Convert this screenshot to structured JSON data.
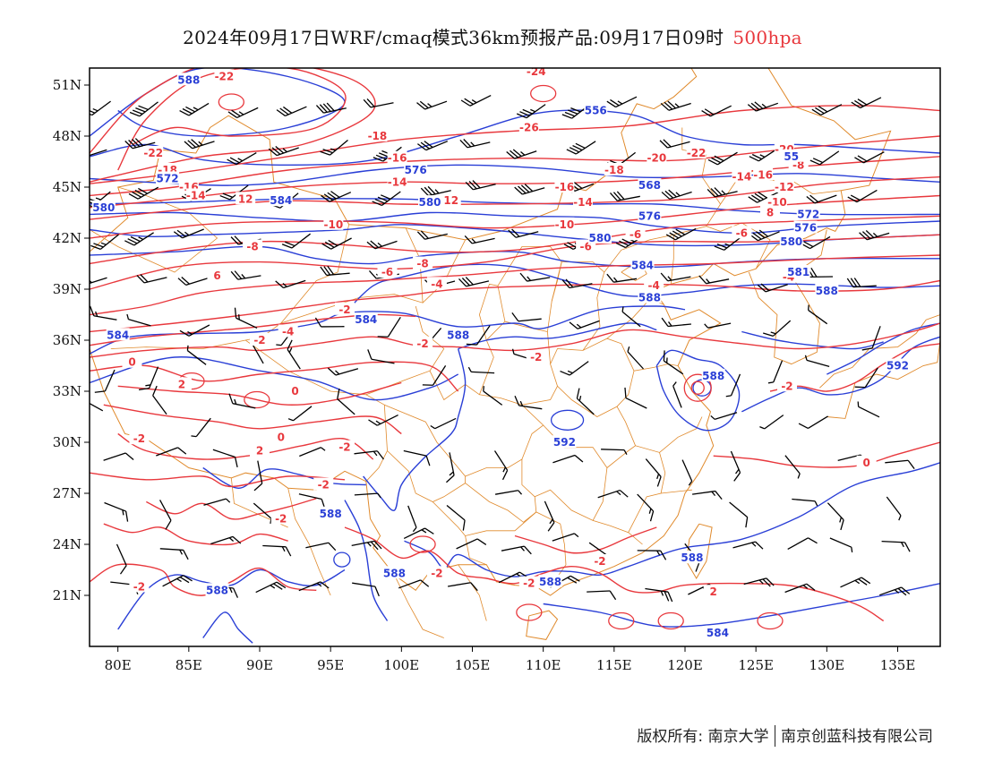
{
  "title": {
    "main": "2024年09月17日WRF/cmaq模式36km预报产品:09月17日09时",
    "level": "500hpa"
  },
  "axes": {
    "x_ticks": [
      "80E",
      "85E",
      "90E",
      "95E",
      "100E",
      "105E",
      "110E",
      "115E",
      "120E",
      "125E",
      "130E",
      "135E"
    ],
    "y_ticks": [
      "51N",
      "48N",
      "45N",
      "42N",
      "39N",
      "36N",
      "33N",
      "30N",
      "27N",
      "24N",
      "21N"
    ]
  },
  "colors": {
    "temperature": "#e8383d",
    "geopotential": "#2a3fd6",
    "border": "#e08a2c",
    "wind": "#000000",
    "frame": "#000000"
  },
  "legend_notes": {
    "red_contours": "temperature (℃)",
    "blue_contours": "geopotential height (dagpm)",
    "barbs": "wind"
  },
  "chart_data": {
    "type": "map",
    "projection": "lat-lon",
    "lon_range": [
      78,
      138
    ],
    "lat_range": [
      18,
      52
    ],
    "temperature_labels": [
      {
        "text": "-22",
        "lon": 87.5,
        "lat": 51.5
      },
      {
        "text": "-22",
        "lon": 82.5,
        "lat": 47.0
      },
      {
        "text": "-18",
        "lon": 83.5,
        "lat": 46.0
      },
      {
        "text": "-16",
        "lon": 85.0,
        "lat": 45.0
      },
      {
        "text": "-14",
        "lon": 85.5,
        "lat": 44.5
      },
      {
        "text": "12",
        "lon": 89.0,
        "lat": 44.3
      },
      {
        "text": "-18",
        "lon": 98.3,
        "lat": 48.0
      },
      {
        "text": "-16",
        "lon": 99.7,
        "lat": 46.7
      },
      {
        "text": "-14",
        "lon": 99.7,
        "lat": 45.3
      },
      {
        "text": "12",
        "lon": 103.5,
        "lat": 44.2
      },
      {
        "text": "-10",
        "lon": 95.2,
        "lat": 42.8
      },
      {
        "text": "-8",
        "lon": 89.5,
        "lat": 41.5
      },
      {
        "text": "6",
        "lon": 87.0,
        "lat": 39.8
      },
      {
        "text": "-8",
        "lon": 101.5,
        "lat": 40.5
      },
      {
        "text": "-6",
        "lon": 99.0,
        "lat": 40.0
      },
      {
        "text": "-4",
        "lon": 102.5,
        "lat": 39.3
      },
      {
        "text": "-24",
        "lon": 109.5,
        "lat": 51.8
      },
      {
        "text": "-26",
        "lon": 109.0,
        "lat": 48.5
      },
      {
        "text": "-18",
        "lon": 115.0,
        "lat": 46.0
      },
      {
        "text": "-16",
        "lon": 111.5,
        "lat": 45.0
      },
      {
        "text": "-14",
        "lon": 112.8,
        "lat": 44.1
      },
      {
        "text": "-10",
        "lon": 111.5,
        "lat": 42.8
      },
      {
        "text": "-6",
        "lon": 113.0,
        "lat": 41.5
      },
      {
        "text": "-6",
        "lon": 116.5,
        "lat": 42.2
      },
      {
        "text": "-4",
        "lon": 117.8,
        "lat": 39.2
      },
      {
        "text": "-20",
        "lon": 118.0,
        "lat": 46.7
      },
      {
        "text": "-22",
        "lon": 120.8,
        "lat": 47.0
      },
      {
        "text": "-14",
        "lon": 124.0,
        "lat": 45.6
      },
      {
        "text": "-16",
        "lon": 125.5,
        "lat": 45.7
      },
      {
        "text": "-20",
        "lon": 127.0,
        "lat": 47.2
      },
      {
        "text": "-8",
        "lon": 128.0,
        "lat": 46.3
      },
      {
        "text": "-12",
        "lon": 127.0,
        "lat": 45.0
      },
      {
        "text": "-10",
        "lon": 126.5,
        "lat": 44.1
      },
      {
        "text": "8",
        "lon": 126.0,
        "lat": 43.5
      },
      {
        "text": "-6",
        "lon": 124.0,
        "lat": 42.3
      },
      {
        "text": "-4",
        "lon": 127.3,
        "lat": 39.7
      },
      {
        "text": "-2",
        "lon": 96.0,
        "lat": 37.8
      },
      {
        "text": "-4",
        "lon": 92.0,
        "lat": 36.5
      },
      {
        "text": "-2",
        "lon": 90.0,
        "lat": 36.0
      },
      {
        "text": "-2",
        "lon": 101.5,
        "lat": 35.8
      },
      {
        "text": "-2",
        "lon": 109.5,
        "lat": 35.0
      },
      {
        "text": "0",
        "lon": 81.0,
        "lat": 34.7
      },
      {
        "text": "2",
        "lon": 84.5,
        "lat": 33.4
      },
      {
        "text": "0",
        "lon": 92.5,
        "lat": 33.0
      },
      {
        "text": "-2",
        "lon": 127.2,
        "lat": 33.3
      },
      {
        "text": "-2",
        "lon": 81.5,
        "lat": 30.2
      },
      {
        "text": "2",
        "lon": 90.0,
        "lat": 29.5
      },
      {
        "text": "0",
        "lon": 91.5,
        "lat": 30.3
      },
      {
        "text": "-2",
        "lon": 96.0,
        "lat": 29.7
      },
      {
        "text": "0",
        "lon": 132.8,
        "lat": 28.8
      },
      {
        "text": "-2",
        "lon": 94.5,
        "lat": 27.5
      },
      {
        "text": "-2",
        "lon": 91.5,
        "lat": 25.5
      },
      {
        "text": "-2",
        "lon": 102.5,
        "lat": 22.3
      },
      {
        "text": "-2",
        "lon": 109.0,
        "lat": 21.7
      },
      {
        "text": "-2",
        "lon": 114.0,
        "lat": 23.0
      },
      {
        "text": "2",
        "lon": 122.0,
        "lat": 21.2
      },
      {
        "text": "-2",
        "lon": 81.5,
        "lat": 21.5
      }
    ],
    "height_labels": [
      {
        "text": "588",
        "lon": 85.0,
        "lat": 51.3
      },
      {
        "text": "556",
        "lon": 113.7,
        "lat": 49.5
      },
      {
        "text": "55",
        "lon": 127.5,
        "lat": 46.8
      },
      {
        "text": "572",
        "lon": 83.5,
        "lat": 45.5
      },
      {
        "text": "576",
        "lon": 101.0,
        "lat": 46.0
      },
      {
        "text": "580",
        "lon": 79.0,
        "lat": 43.8
      },
      {
        "text": "584",
        "lon": 91.5,
        "lat": 44.2
      },
      {
        "text": "580",
        "lon": 102.0,
        "lat": 44.1
      },
      {
        "text": "568",
        "lon": 117.5,
        "lat": 45.1
      },
      {
        "text": "576",
        "lon": 117.5,
        "lat": 43.3
      },
      {
        "text": "580",
        "lon": 114.0,
        "lat": 42.0
      },
      {
        "text": "584",
        "lon": 117.0,
        "lat": 40.4
      },
      {
        "text": "588",
        "lon": 117.5,
        "lat": 38.5
      },
      {
        "text": "580",
        "lon": 127.5,
        "lat": 41.8
      },
      {
        "text": "576",
        "lon": 128.5,
        "lat": 42.6
      },
      {
        "text": "572",
        "lon": 128.7,
        "lat": 43.4
      },
      {
        "text": "581",
        "lon": 128.0,
        "lat": 40.0
      },
      {
        "text": "588",
        "lon": 130.0,
        "lat": 38.9
      },
      {
        "text": "584",
        "lon": 80.0,
        "lat": 36.3
      },
      {
        "text": "584",
        "lon": 97.5,
        "lat": 37.2
      },
      {
        "text": "588",
        "lon": 104.0,
        "lat": 36.3
      },
      {
        "text": "588",
        "lon": 122.0,
        "lat": 33.9
      },
      {
        "text": "592",
        "lon": 135.0,
        "lat": 34.5
      },
      {
        "text": "592",
        "lon": 111.5,
        "lat": 30.0
      },
      {
        "text": "588",
        "lon": 95.0,
        "lat": 25.8
      },
      {
        "text": "588",
        "lon": 99.5,
        "lat": 22.3
      },
      {
        "text": "588",
        "lon": 87.0,
        "lat": 21.3
      },
      {
        "text": "588",
        "lon": 110.5,
        "lat": 21.8
      },
      {
        "text": "588",
        "lon": 120.5,
        "lat": 23.2
      },
      {
        "text": "584",
        "lon": 122.3,
        "lat": 18.8
      }
    ]
  },
  "footer": {
    "copyright": "版权所有: 南京大学",
    "company": "南京创蓝科技有限公司"
  }
}
